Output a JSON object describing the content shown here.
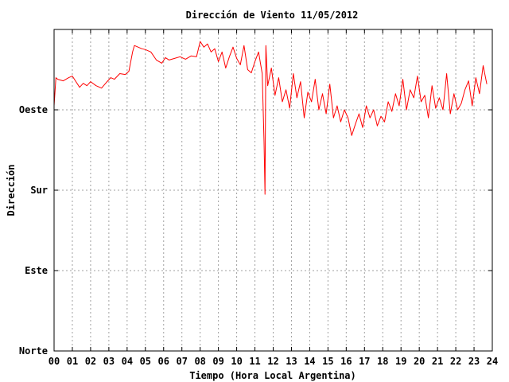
{
  "chart_data": {
    "type": "line",
    "title": "Dirección de Viento 11/05/2012",
    "xlabel": "Tiempo (Hora Local Argentina)",
    "ylabel": "Dirección",
    "xlim": [
      0,
      24
    ],
    "ylim": [
      0,
      400
    ],
    "grid": true,
    "x_ticks": [
      "00",
      "01",
      "02",
      "03",
      "04",
      "05",
      "06",
      "07",
      "08",
      "09",
      "10",
      "11",
      "12",
      "13",
      "14",
      "15",
      "16",
      "17",
      "18",
      "19",
      "20",
      "21",
      "22",
      "23",
      "24"
    ],
    "y_ticks": [
      {
        "value": 0,
        "label": "Norte"
      },
      {
        "value": 100,
        "label": "Este"
      },
      {
        "value": 200,
        "label": "Sur"
      },
      {
        "value": 300,
        "label": "Oeste"
      }
    ],
    "series": [
      {
        "color": "#ff0000",
        "x": [
          0.0,
          0.1,
          0.2,
          0.5,
          0.8,
          1.0,
          1.2,
          1.4,
          1.6,
          1.8,
          2.0,
          2.3,
          2.6,
          2.9,
          3.1,
          3.3,
          3.6,
          3.9,
          4.1,
          4.3,
          4.4,
          4.6,
          4.8,
          5.0,
          5.3,
          5.6,
          5.9,
          6.1,
          6.3,
          6.6,
          6.9,
          7.2,
          7.5,
          7.8,
          8.0,
          8.2,
          8.4,
          8.6,
          8.8,
          9.0,
          9.2,
          9.4,
          9.6,
          9.8,
          10.0,
          10.2,
          10.4,
          10.6,
          10.8,
          11.0,
          11.2,
          11.4,
          11.5,
          11.55,
          11.6,
          11.7,
          11.9,
          12.1,
          12.3,
          12.5,
          12.7,
          12.9,
          13.1,
          13.3,
          13.5,
          13.7,
          13.9,
          14.1,
          14.3,
          14.5,
          14.7,
          14.9,
          15.1,
          15.3,
          15.5,
          15.7,
          15.9,
          16.1,
          16.3,
          16.5,
          16.7,
          16.9,
          17.1,
          17.3,
          17.5,
          17.7,
          17.9,
          18.1,
          18.3,
          18.5,
          18.7,
          18.9,
          19.1,
          19.3,
          19.5,
          19.7,
          19.9,
          20.1,
          20.3,
          20.5,
          20.7,
          20.9,
          21.1,
          21.3,
          21.5,
          21.7,
          21.9,
          22.1,
          22.3,
          22.5,
          22.7,
          22.9,
          23.1,
          23.3,
          23.5,
          23.7
        ],
        "values": [
          305,
          340,
          338,
          336,
          340,
          342,
          335,
          328,
          333,
          330,
          335,
          330,
          327,
          335,
          340,
          338,
          345,
          344,
          348,
          372,
          380,
          378,
          376,
          375,
          372,
          362,
          358,
          365,
          362,
          364,
          366,
          363,
          367,
          366,
          385,
          378,
          382,
          372,
          376,
          360,
          372,
          352,
          366,
          378,
          364,
          356,
          380,
          350,
          346,
          360,
          372,
          345,
          260,
          195,
          380,
          330,
          352,
          318,
          340,
          310,
          325,
          302,
          345,
          315,
          335,
          290,
          322,
          310,
          338,
          300,
          320,
          295,
          332,
          290,
          305,
          285,
          300,
          290,
          268,
          282,
          295,
          278,
          305,
          290,
          300,
          280,
          292,
          285,
          310,
          298,
          320,
          305,
          338,
          300,
          325,
          315,
          342,
          310,
          318,
          290,
          330,
          302,
          315,
          300,
          345,
          295,
          320,
          300,
          308,
          325,
          336,
          305,
          340,
          320,
          355,
          332
        ]
      }
    ]
  }
}
